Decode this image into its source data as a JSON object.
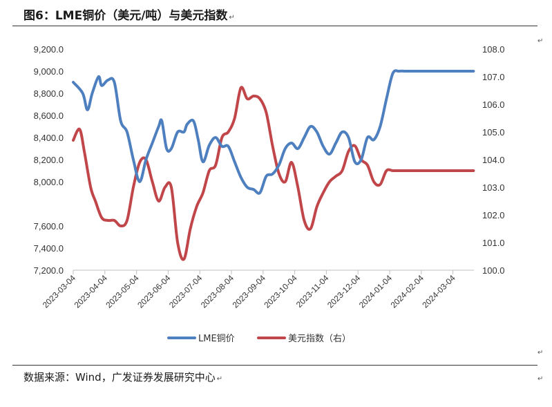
{
  "header": {
    "title": "图6：LME铜价（美元/吨）与美元指数",
    "para_mark": "↵"
  },
  "footer": {
    "source": "数据来源：Wind，广发证券发展研究中心",
    "para_mark": "↵"
  },
  "colors": {
    "copper": "#4E7FBF",
    "usd": "#C0464A",
    "axis": "#BFBFBF"
  },
  "chart_data": {
    "type": "line",
    "x_tick_labels": [
      "2023-03-04",
      "2023-04-04",
      "2023-05-04",
      "2023-06-04",
      "2023-07-04",
      "2023-08-04",
      "2023-09-04",
      "2023-10-04",
      "2023-11-04",
      "2023-12-04",
      "2024-01-04",
      "2024-02-04",
      "2024-03-04"
    ],
    "y_left": {
      "ticks": [
        "7,200.0",
        "7,400.0",
        "7,600.0",
        "8,000.0",
        "8,200.0",
        "8,400.0",
        "8,600.0",
        "8,800.0",
        "9,000.0",
        "9,200.0"
      ],
      "tick_values": [
        7200,
        7400,
        7600,
        8000,
        8200,
        8400,
        8600,
        8800,
        9000,
        9200
      ],
      "range": [
        7200,
        9200
      ]
    },
    "y_right": {
      "ticks": [
        "100.0",
        "101.0",
        "102.0",
        "103.0",
        "104.0",
        "105.0",
        "106.0",
        "107.0",
        "108.0"
      ],
      "tick_values": [
        100,
        101,
        102,
        103,
        104,
        105,
        106,
        107,
        108
      ],
      "range": [
        100,
        108
      ]
    },
    "grid": false,
    "legend_position": "bottom",
    "series": [
      {
        "name": "LME铜价",
        "axis": "left",
        "x": [
          0,
          0.3,
          0.45,
          0.6,
          0.8,
          0.9,
          1.1,
          1.3,
          1.5,
          1.7,
          1.9,
          2.1,
          2.3,
          2.5,
          2.7,
          2.8,
          2.95,
          3.1,
          3.3,
          3.5,
          3.6,
          3.8,
          3.95,
          4.1,
          4.3,
          4.5,
          4.7,
          4.9,
          5.1,
          5.3,
          5.5,
          5.7,
          5.9,
          6.1,
          6.3,
          6.5,
          6.7,
          6.9,
          7.1,
          7.3,
          7.5,
          7.7,
          7.9,
          8.1,
          8.3,
          8.5,
          8.7,
          8.9,
          9.1,
          9.3,
          9.5,
          9.7,
          9.9,
          10.1,
          10.3,
          10.5,
          10.7,
          10.9,
          11.1,
          11.3,
          11.5,
          11.7,
          11.9,
          12.1,
          12.3,
          12.5,
          12.65
        ],
        "values": [
          8900,
          8800,
          8650,
          8800,
          8950,
          8870,
          8920,
          8900,
          8550,
          8450,
          8200,
          8000,
          8200,
          8350,
          8500,
          8550,
          8300,
          8300,
          8450,
          8450,
          8520,
          8550,
          8380,
          8180,
          8330,
          8400,
          8320,
          8320,
          8180,
          8040,
          7950,
          7930,
          7900,
          8050,
          8070,
          8150,
          8300,
          8350,
          8300,
          8400,
          8500,
          8450,
          8320,
          8250,
          8350,
          8450,
          8400,
          8180,
          8200,
          8400,
          8380,
          8500,
          8750,
          8980,
          9000,
          9000,
          9000,
          9000,
          9000,
          9000,
          9000,
          9000,
          9000,
          9000,
          9000,
          9000,
          9000
        ]
      },
      {
        "name": "美元指数（右）",
        "axis": "right",
        "x": [
          0,
          0.2,
          0.35,
          0.55,
          0.7,
          0.9,
          1.1,
          1.3,
          1.5,
          1.7,
          1.9,
          2.1,
          2.3,
          2.5,
          2.7,
          2.9,
          3.1,
          3.3,
          3.5,
          3.7,
          3.9,
          4.1,
          4.3,
          4.5,
          4.7,
          4.9,
          5.1,
          5.3,
          5.5,
          5.7,
          5.9,
          6.1,
          6.3,
          6.5,
          6.7,
          6.9,
          7.1,
          7.3,
          7.5,
          7.7,
          7.9,
          8.1,
          8.3,
          8.5,
          8.7,
          8.9,
          9.1,
          9.3,
          9.5,
          9.7,
          9.9,
          10.1,
          10.3,
          10.5,
          10.7,
          10.9,
          11.1,
          11.3,
          11.5,
          11.7,
          11.9,
          12.1,
          12.3,
          12.5,
          12.65
        ],
        "values": [
          104.7,
          105.1,
          104.3,
          103.0,
          102.5,
          101.9,
          101.8,
          101.8,
          101.6,
          101.8,
          103.0,
          103.9,
          104.0,
          103.2,
          102.5,
          103.0,
          103.0,
          101.0,
          100.4,
          101.5,
          102.3,
          102.8,
          103.6,
          103.8,
          104.8,
          105.0,
          105.5,
          106.6,
          106.2,
          106.3,
          106.2,
          105.7,
          104.5,
          103.5,
          103.2,
          103.9,
          103.0,
          101.8,
          101.5,
          102.3,
          102.8,
          103.2,
          103.4,
          103.6,
          104.3,
          104.5,
          104.0,
          103.8,
          103.2,
          103.1,
          103.6,
          103.6,
          103.6,
          103.6,
          103.6,
          103.6,
          103.6,
          103.6,
          103.6,
          103.6,
          103.6,
          103.6,
          103.6,
          103.6,
          103.6
        ]
      }
    ],
    "legend": [
      "LME铜价",
      "美元指数（右）"
    ]
  }
}
